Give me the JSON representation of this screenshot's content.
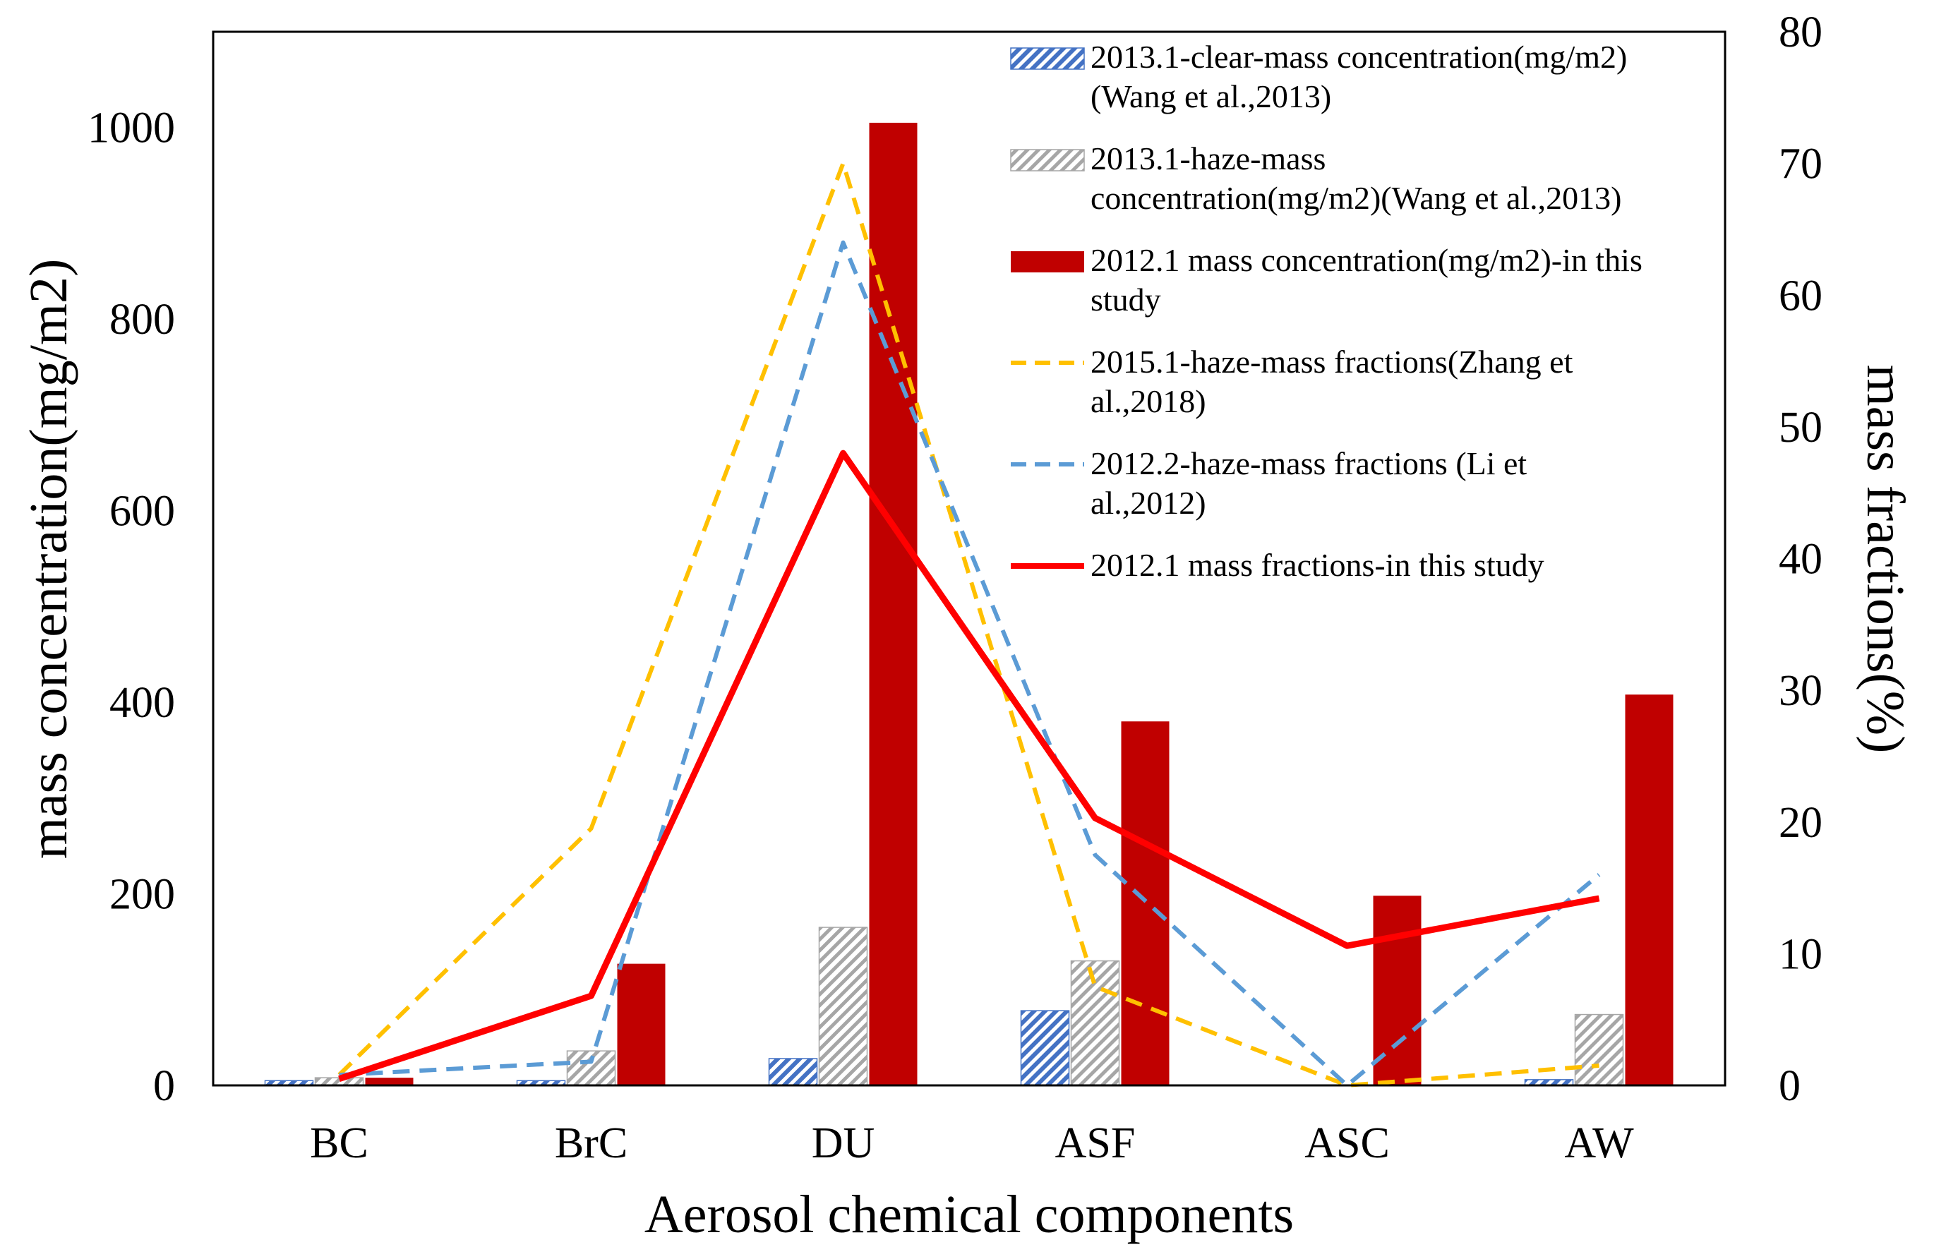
{
  "chart_data": {
    "type": "bar",
    "categories": [
      "BC",
      "BrC",
      "DU",
      "ASF",
      "ASC",
      "AW"
    ],
    "xlabel": "Aerosol chemical components",
    "ylabel": "mass concentration(mg/m2)",
    "y2label": "mass fractions(%)",
    "ylim": [
      0,
      1100
    ],
    "y2lim": [
      0,
      80
    ],
    "yticks": [
      "0",
      "200",
      "400",
      "600",
      "800",
      "1000"
    ],
    "y2ticks": [
      "0",
      "10",
      "20",
      "30",
      "40",
      "50",
      "60",
      "70",
      "80"
    ],
    "bar_series": [
      {
        "name": "2013.1-clear-mass concentration(mg/m2)(Wang et al.,2013)",
        "legend_lines": [
          "2013.1-clear-mass concentration(mg/m2)",
          "(Wang et al.,2013)"
        ],
        "pattern": "hatch-blue",
        "values": [
          5,
          5,
          28,
          78,
          0,
          6
        ]
      },
      {
        "name": "2013.1-haze-mass concentration(mg/m2)(Wang et al.,2013)",
        "legend_lines": [
          "2013.1-haze-mass",
          "concentration(mg/m2)(Wang et al.,2013)"
        ],
        "pattern": "hatch-gray",
        "values": [
          8,
          36,
          165,
          130,
          0,
          74
        ]
      },
      {
        "name": "2012.1 mass concentration(mg/m2)-in this study",
        "legend_lines": [
          "2012.1 mass concentration(mg/m2)-in this",
          "study"
        ],
        "pattern": "solid",
        "color": "#C00000",
        "values": [
          8,
          127,
          1005,
          380,
          198,
          408
        ]
      }
    ],
    "line_series": [
      {
        "name": "2015.1-haze-mass fractions(Zhang et al.,2018)",
        "legend_lines": [
          "2015.1-haze-mass fractions(Zhang et",
          "al.,2018)"
        ],
        "color": "#FFC000",
        "dashed": true,
        "values": [
          0.8,
          19.5,
          70,
          7.5,
          0,
          1.5
        ]
      },
      {
        "name": "2012.2-haze-mass fractions (Li et al.,2012)",
        "legend_lines": [
          "2012.2-haze-mass fractions (Li et",
          "al.,2012)"
        ],
        "color": "#5B9BD5",
        "dashed": true,
        "values": [
          0.8,
          1.8,
          64,
          17.5,
          0,
          16
        ]
      },
      {
        "name": "2012.1 mass fractions-in this study",
        "legend_lines": [
          "2012.1 mass fractions-in this study"
        ],
        "color": "#FF0000",
        "dashed": false,
        "values": [
          0.5,
          6.8,
          48,
          20.3,
          10.6,
          14.2
        ]
      }
    ]
  }
}
